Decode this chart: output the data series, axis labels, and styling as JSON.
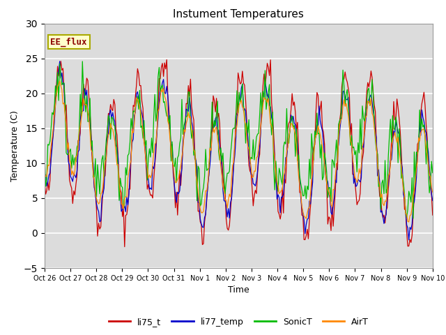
{
  "title": "Instument Temperatures",
  "xlabel": "Time",
  "ylabel": "Temperature (C)",
  "ylim": [
    -5,
    30
  ],
  "yticks": [
    -5,
    0,
    5,
    10,
    15,
    20,
    25,
    30
  ],
  "annotation_text": "EE_flux",
  "annotation_color": "#8B0000",
  "annotation_bg": "#FFFFCC",
  "annotation_border": "#AAAA00",
  "fig_bg": "#FFFFFF",
  "plot_bg": "#DCDCDC",
  "line_colors": {
    "li75_t": "#CC0000",
    "li77_temp": "#0000CC",
    "SonicT": "#00BB00",
    "AirT": "#FF8800"
  },
  "xtick_labels": [
    "Oct 26",
    "Oct 27",
    "Oct 28",
    "Oct 29",
    "Oct 30",
    "Oct 31",
    "Nov 1",
    "Nov 2",
    "Nov 3",
    "Nov 4",
    "Nov 5",
    "Nov 6",
    "Nov 7",
    "Nov 8",
    "Nov 9",
    "Nov 10"
  ],
  "seed": 42
}
